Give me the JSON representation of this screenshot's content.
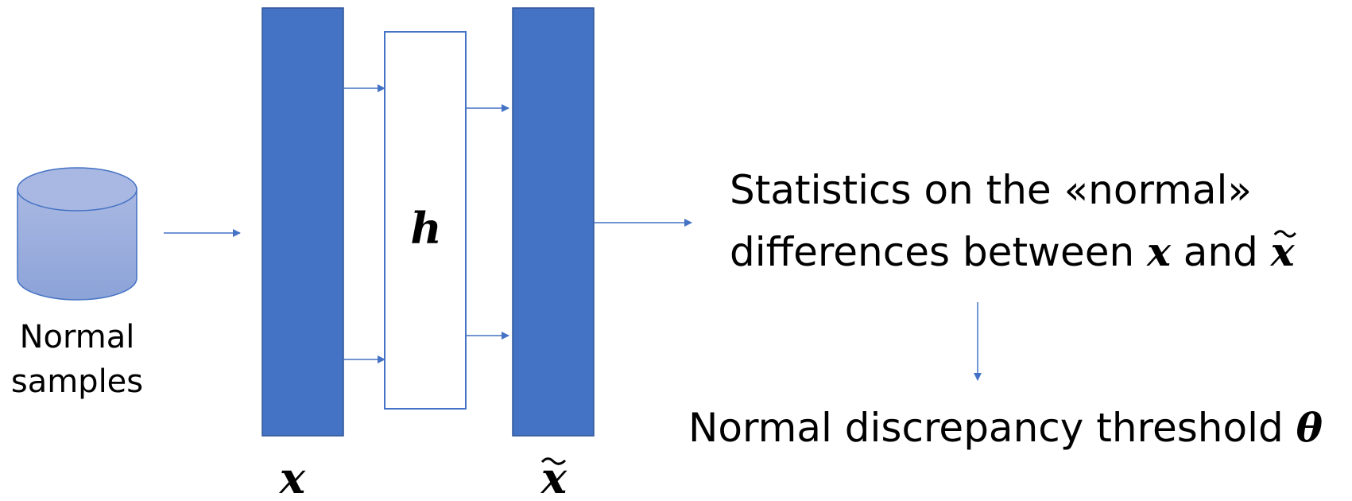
{
  "colors": {
    "accent": "#4472C4",
    "accent_border": "#2F5597",
    "cylinder_top": "#A9B8E2",
    "cylinder_bottom": "#8CA3D8",
    "cylinder_edge": "#4472C4",
    "text": "#000000",
    "hidden_layer_fill": "#FFFFFF"
  },
  "source": {
    "label_line1": "Normal",
    "label_line2": "samples",
    "icon": "database-cylinder-icon"
  },
  "layers": {
    "input_label": "x",
    "hidden_label": "h",
    "output_label": "x"
  },
  "statistics": {
    "line1": "Statistics on the «normal»",
    "line2_prefix": "differences between ",
    "line2_var1": "x",
    "line2_middle": " and ",
    "line2_var2": "x"
  },
  "threshold": {
    "text_prefix": "Normal discrepancy threshold ",
    "symbol": "θ"
  }
}
